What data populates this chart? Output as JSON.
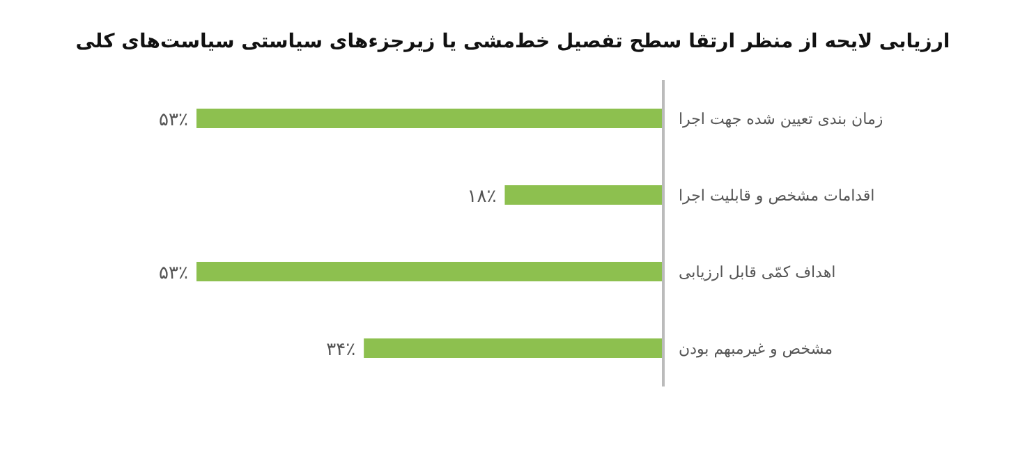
{
  "chart_data": {
    "type": "bar",
    "orientation": "horizontal",
    "title": "ارزیابی لایحه از منظر ارتقا سطح تفصیل خط‌مشی یا زیرجزء‌های سیاستی سیاست‌های کلی",
    "categories": [
      "زمان بندی تعیین شده جهت اجرا",
      "اقدامات مشخص و قابلیت اجرا",
      "اهداف کمّی قابل ارزیابی",
      "مشخص و غیرمبهم بودن"
    ],
    "values": [
      53,
      18,
      53,
      34
    ],
    "value_labels": [
      "۵۳٪",
      "۱۸٪",
      "۵۳٪",
      "۳۴٪"
    ],
    "color": "#8dc04f"
  }
}
